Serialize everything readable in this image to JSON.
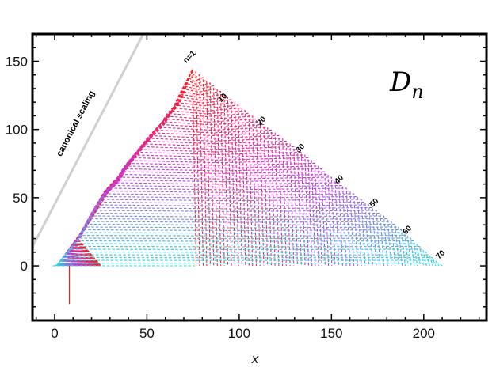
{
  "chart_data": {
    "type": "line",
    "panel_label": {
      "main": "D",
      "sub": "n"
    },
    "xlabel": "x",
    "ylabel": "",
    "xlim": [
      -12,
      234
    ],
    "ylim": [
      -40,
      170
    ],
    "x_ticks": [
      0,
      50,
      100,
      150,
      200
    ],
    "y_ticks": [
      0,
      50,
      100,
      150
    ],
    "grid": false,
    "canonical_scaling": {
      "label": "canonical scaling",
      "color": "#d0d0d0",
      "points": [
        [
          -12,
          14
        ],
        [
          48,
          170
        ]
      ]
    },
    "series_family": {
      "n_range": [
        1,
        72
      ],
      "style": "dashed",
      "color_start": "#ff1a1a",
      "color_mid": "#cc33dd",
      "color_end": "#22e0e0",
      "envelope": {
        "left_edge": [
          [
            -1,
            0
          ],
          [
            5,
            10
          ],
          [
            11,
            20
          ],
          [
            14,
            28
          ],
          [
            20,
            42
          ],
          [
            26,
            55
          ],
          [
            32,
            62
          ],
          [
            36,
            72
          ],
          [
            42,
            82
          ],
          [
            50,
            95
          ],
          [
            56,
            103
          ],
          [
            60,
            112
          ],
          [
            64,
            118
          ],
          [
            67,
            127
          ],
          [
            72,
            140
          ],
          [
            74,
            145
          ]
        ],
        "right_edge": [
          [
            74,
            145
          ],
          [
            90,
            128
          ],
          [
            105,
            112
          ],
          [
            120,
            97
          ],
          [
            135,
            82
          ],
          [
            150,
            65
          ],
          [
            170,
            45
          ],
          [
            185,
            30
          ],
          [
            198,
            14
          ],
          [
            208,
            2
          ]
        ],
        "baseline": [
          -1,
          208
        ]
      },
      "first_curve_tail": [
        [
          8,
          0
        ],
        [
          8,
          -28
        ]
      ]
    },
    "curve_labels": [
      {
        "text": "n=1",
        "x": 74,
        "y": 152
      },
      {
        "text": "10",
        "x": 92,
        "y": 122
      },
      {
        "text": "20",
        "x": 113,
        "y": 105
      },
      {
        "text": "30",
        "x": 134,
        "y": 85
      },
      {
        "text": "40",
        "x": 155,
        "y": 62
      },
      {
        "text": "50",
        "x": 174,
        "y": 45
      },
      {
        "text": "60",
        "x": 192,
        "y": 25
      },
      {
        "text": "70",
        "x": 210,
        "y": 7
      }
    ]
  }
}
